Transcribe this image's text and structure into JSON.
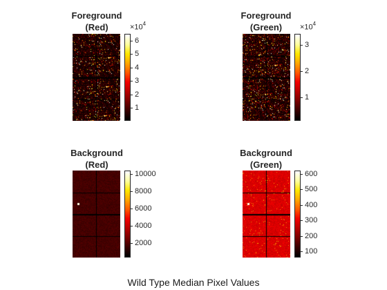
{
  "figure_title": "Wild Type Median Pixel Values",
  "colormap": [
    "#000000",
    "#3a0000",
    "#7a0000",
    "#b80000",
    "#f20000",
    "#ff5a00",
    "#ffa800",
    "#ffe800",
    "#ffffa0",
    "#ffffff"
  ],
  "panels": [
    {
      "id": "fg-red",
      "title_line1": "Foreground",
      "title_line2": "(Red)",
      "colorbar": {
        "exponent_base": "×10",
        "exponent_power": "4",
        "ticks": [
          {
            "label": "6",
            "level": 0.92
          },
          {
            "label": "5",
            "level": 0.77
          },
          {
            "label": "4",
            "level": 0.615
          },
          {
            "label": "3",
            "level": 0.46
          },
          {
            "label": "2",
            "level": 0.305
          },
          {
            "label": "1",
            "level": 0.15
          }
        ]
      },
      "image": {
        "style": "sparse",
        "base_level": 0.09,
        "noise": 0.12,
        "hot_fraction": 0.05
      }
    },
    {
      "id": "fg-green",
      "title_line1": "Foreground",
      "title_line2": "(Green)",
      "colorbar": {
        "exponent_base": "×10",
        "exponent_power": "4",
        "ticks": [
          {
            "label": "3",
            "level": 0.87
          },
          {
            "label": "2",
            "level": 0.57
          },
          {
            "label": "1",
            "level": 0.27
          }
        ]
      },
      "image": {
        "style": "sparse",
        "base_level": 0.11,
        "noise": 0.14,
        "hot_fraction": 0.06
      }
    },
    {
      "id": "bg-red",
      "title_line1": "Background",
      "title_line2": "(Red)",
      "colorbar": {
        "exponent_base": "",
        "exponent_power": "",
        "ticks": [
          {
            "label": "10000",
            "level": 0.96
          },
          {
            "label": "8000",
            "level": 0.76
          },
          {
            "label": "6000",
            "level": 0.56
          },
          {
            "label": "4000",
            "level": 0.365
          },
          {
            "label": "2000",
            "level": 0.165
          }
        ]
      },
      "image": {
        "style": "dim",
        "base_level": 0.13,
        "noise": 0.03,
        "hot_fraction": 0.0
      }
    },
    {
      "id": "bg-green",
      "title_line1": "Background",
      "title_line2": "(Green)",
      "colorbar": {
        "exponent_base": "",
        "exponent_power": "",
        "ticks": [
          {
            "label": "600",
            "level": 0.96
          },
          {
            "label": "500",
            "level": 0.785
          },
          {
            "label": "400",
            "level": 0.605
          },
          {
            "label": "300",
            "level": 0.43
          },
          {
            "label": "200",
            "level": 0.25
          },
          {
            "label": "100",
            "level": 0.07
          }
        ]
      },
      "image": {
        "style": "bright",
        "base_level": 0.4,
        "noise": 0.05,
        "hot_fraction": 0.0
      }
    }
  ]
}
